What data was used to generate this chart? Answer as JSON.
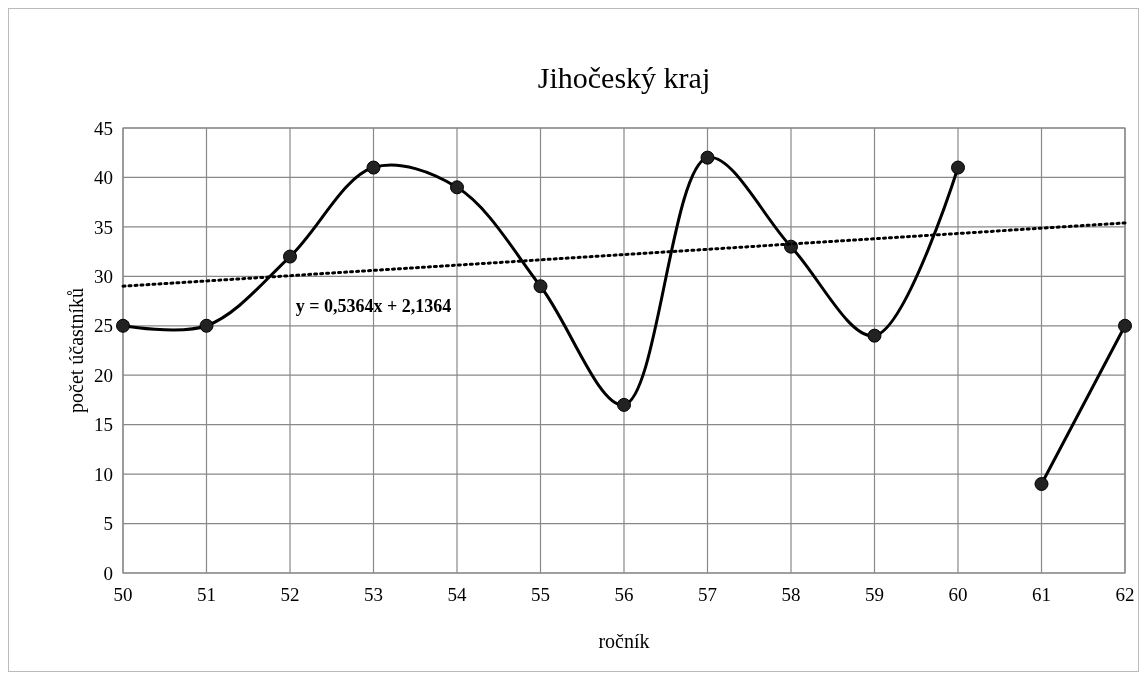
{
  "chart_data": {
    "type": "line",
    "title": "Jihočeský kraj",
    "xlabel": "ročník",
    "ylabel": "počet účastníků",
    "xlim": [
      50,
      62
    ],
    "xticks": [
      50,
      51,
      52,
      53,
      54,
      55,
      56,
      57,
      58,
      59,
      60,
      61,
      62
    ],
    "ylim": [
      0,
      45
    ],
    "yticks": [
      0,
      5,
      10,
      15,
      20,
      25,
      30,
      35,
      40,
      45
    ],
    "grid": true,
    "marker": "circle",
    "series": [
      {
        "color": "#000000",
        "x": [
          50,
          51,
          52,
          53,
          54,
          55,
          56,
          57,
          58,
          59,
          60
        ],
        "values": [
          25,
          25,
          32,
          41,
          39,
          29,
          17,
          42,
          33,
          24,
          41
        ]
      },
      {
        "color": "#000000",
        "x": [
          61,
          62
        ],
        "values": [
          9,
          25
        ]
      },
      {
        "color": "#000000",
        "x": [
          50,
          62
        ],
        "values": [
          29,
          35.4
        ],
        "line_style": "dotted",
        "marker": "none"
      }
    ],
    "annotations": [
      "y = 0,5364x + 2,1364"
    ]
  }
}
